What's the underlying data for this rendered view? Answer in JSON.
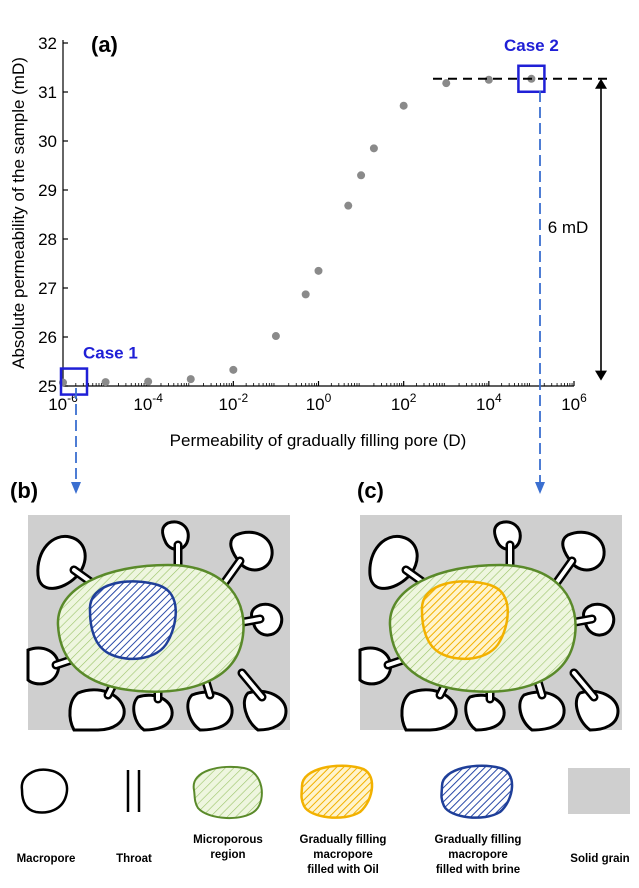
{
  "panel_labels": {
    "a": "(a)",
    "b": "(b)",
    "c": "(c)"
  },
  "chart_data": {
    "type": "scatter",
    "xlabel": "Permeability of gradually filling pore (D)",
    "ylabel": "Absolute permeability of the sample (mD)",
    "x_scale": "log",
    "xlim": [
      1e-06,
      1000000.0
    ],
    "ylim": [
      25,
      32
    ],
    "x_ticks": [
      {
        "value": 1e-06,
        "base": "10",
        "exp": "-6"
      },
      {
        "value": 0.0001,
        "base": "10",
        "exp": "-4"
      },
      {
        "value": 0.01,
        "base": "10",
        "exp": "-2"
      },
      {
        "value": 1,
        "base": "10",
        "exp": "0"
      },
      {
        "value": 100,
        "base": "10",
        "exp": "2"
      },
      {
        "value": 10000,
        "base": "10",
        "exp": "4"
      },
      {
        "value": 1000000,
        "base": "10",
        "exp": "6"
      }
    ],
    "y_ticks": [
      25,
      26,
      27,
      28,
      29,
      30,
      31,
      32
    ],
    "grid": false,
    "marker_color": "#8a8a8a",
    "points": [
      {
        "x": 1e-06,
        "y": 25.07
      },
      {
        "x": 1e-05,
        "y": 25.08
      },
      {
        "x": 0.0001,
        "y": 25.09
      },
      {
        "x": 0.001,
        "y": 25.14
      },
      {
        "x": 0.01,
        "y": 25.33
      },
      {
        "x": 0.1,
        "y": 26.02
      },
      {
        "x": 0.5,
        "y": 26.87
      },
      {
        "x": 1,
        "y": 27.35
      },
      {
        "x": 5,
        "y": 28.68
      },
      {
        "x": 10,
        "y": 29.3
      },
      {
        "x": 20,
        "y": 29.85
      },
      {
        "x": 100,
        "y": 30.72
      },
      {
        "x": 1000,
        "y": 31.18
      },
      {
        "x": 10000,
        "y": 31.25
      },
      {
        "x": 100000,
        "y": 31.27
      }
    ],
    "annotations": {
      "case1": {
        "label": "Case 1",
        "x": 1e-06,
        "y": 25.07
      },
      "case2": {
        "label": "Case 2",
        "x": 100000,
        "y": 31.27
      },
      "difference": "6 mD",
      "reference_level": 31.27
    }
  },
  "legend": [
    {
      "label": "Macropore",
      "icon": "macropore-icon"
    },
    {
      "label": "Throat",
      "icon": "throat-icon"
    },
    {
      "label": "Microporous region",
      "icon": "microporous-region-icon"
    },
    {
      "label": "Gradually filling macropore filled with Oil",
      "icon": "oil-filled-macropore-icon"
    },
    {
      "label": "Gradually filling macropore filled with brine",
      "icon": "brine-filled-macropore-icon"
    },
    {
      "label": "Solid grain",
      "icon": "solid-grain-icon"
    }
  ],
  "colors": {
    "case": "#1f1fd6",
    "micro_fill": "#eaf3d8",
    "micro_stroke": "#5a8a2a",
    "brine_stroke": "#1f3f99",
    "oil_stroke": "#f2b100",
    "grain": "#cfcfcf"
  }
}
